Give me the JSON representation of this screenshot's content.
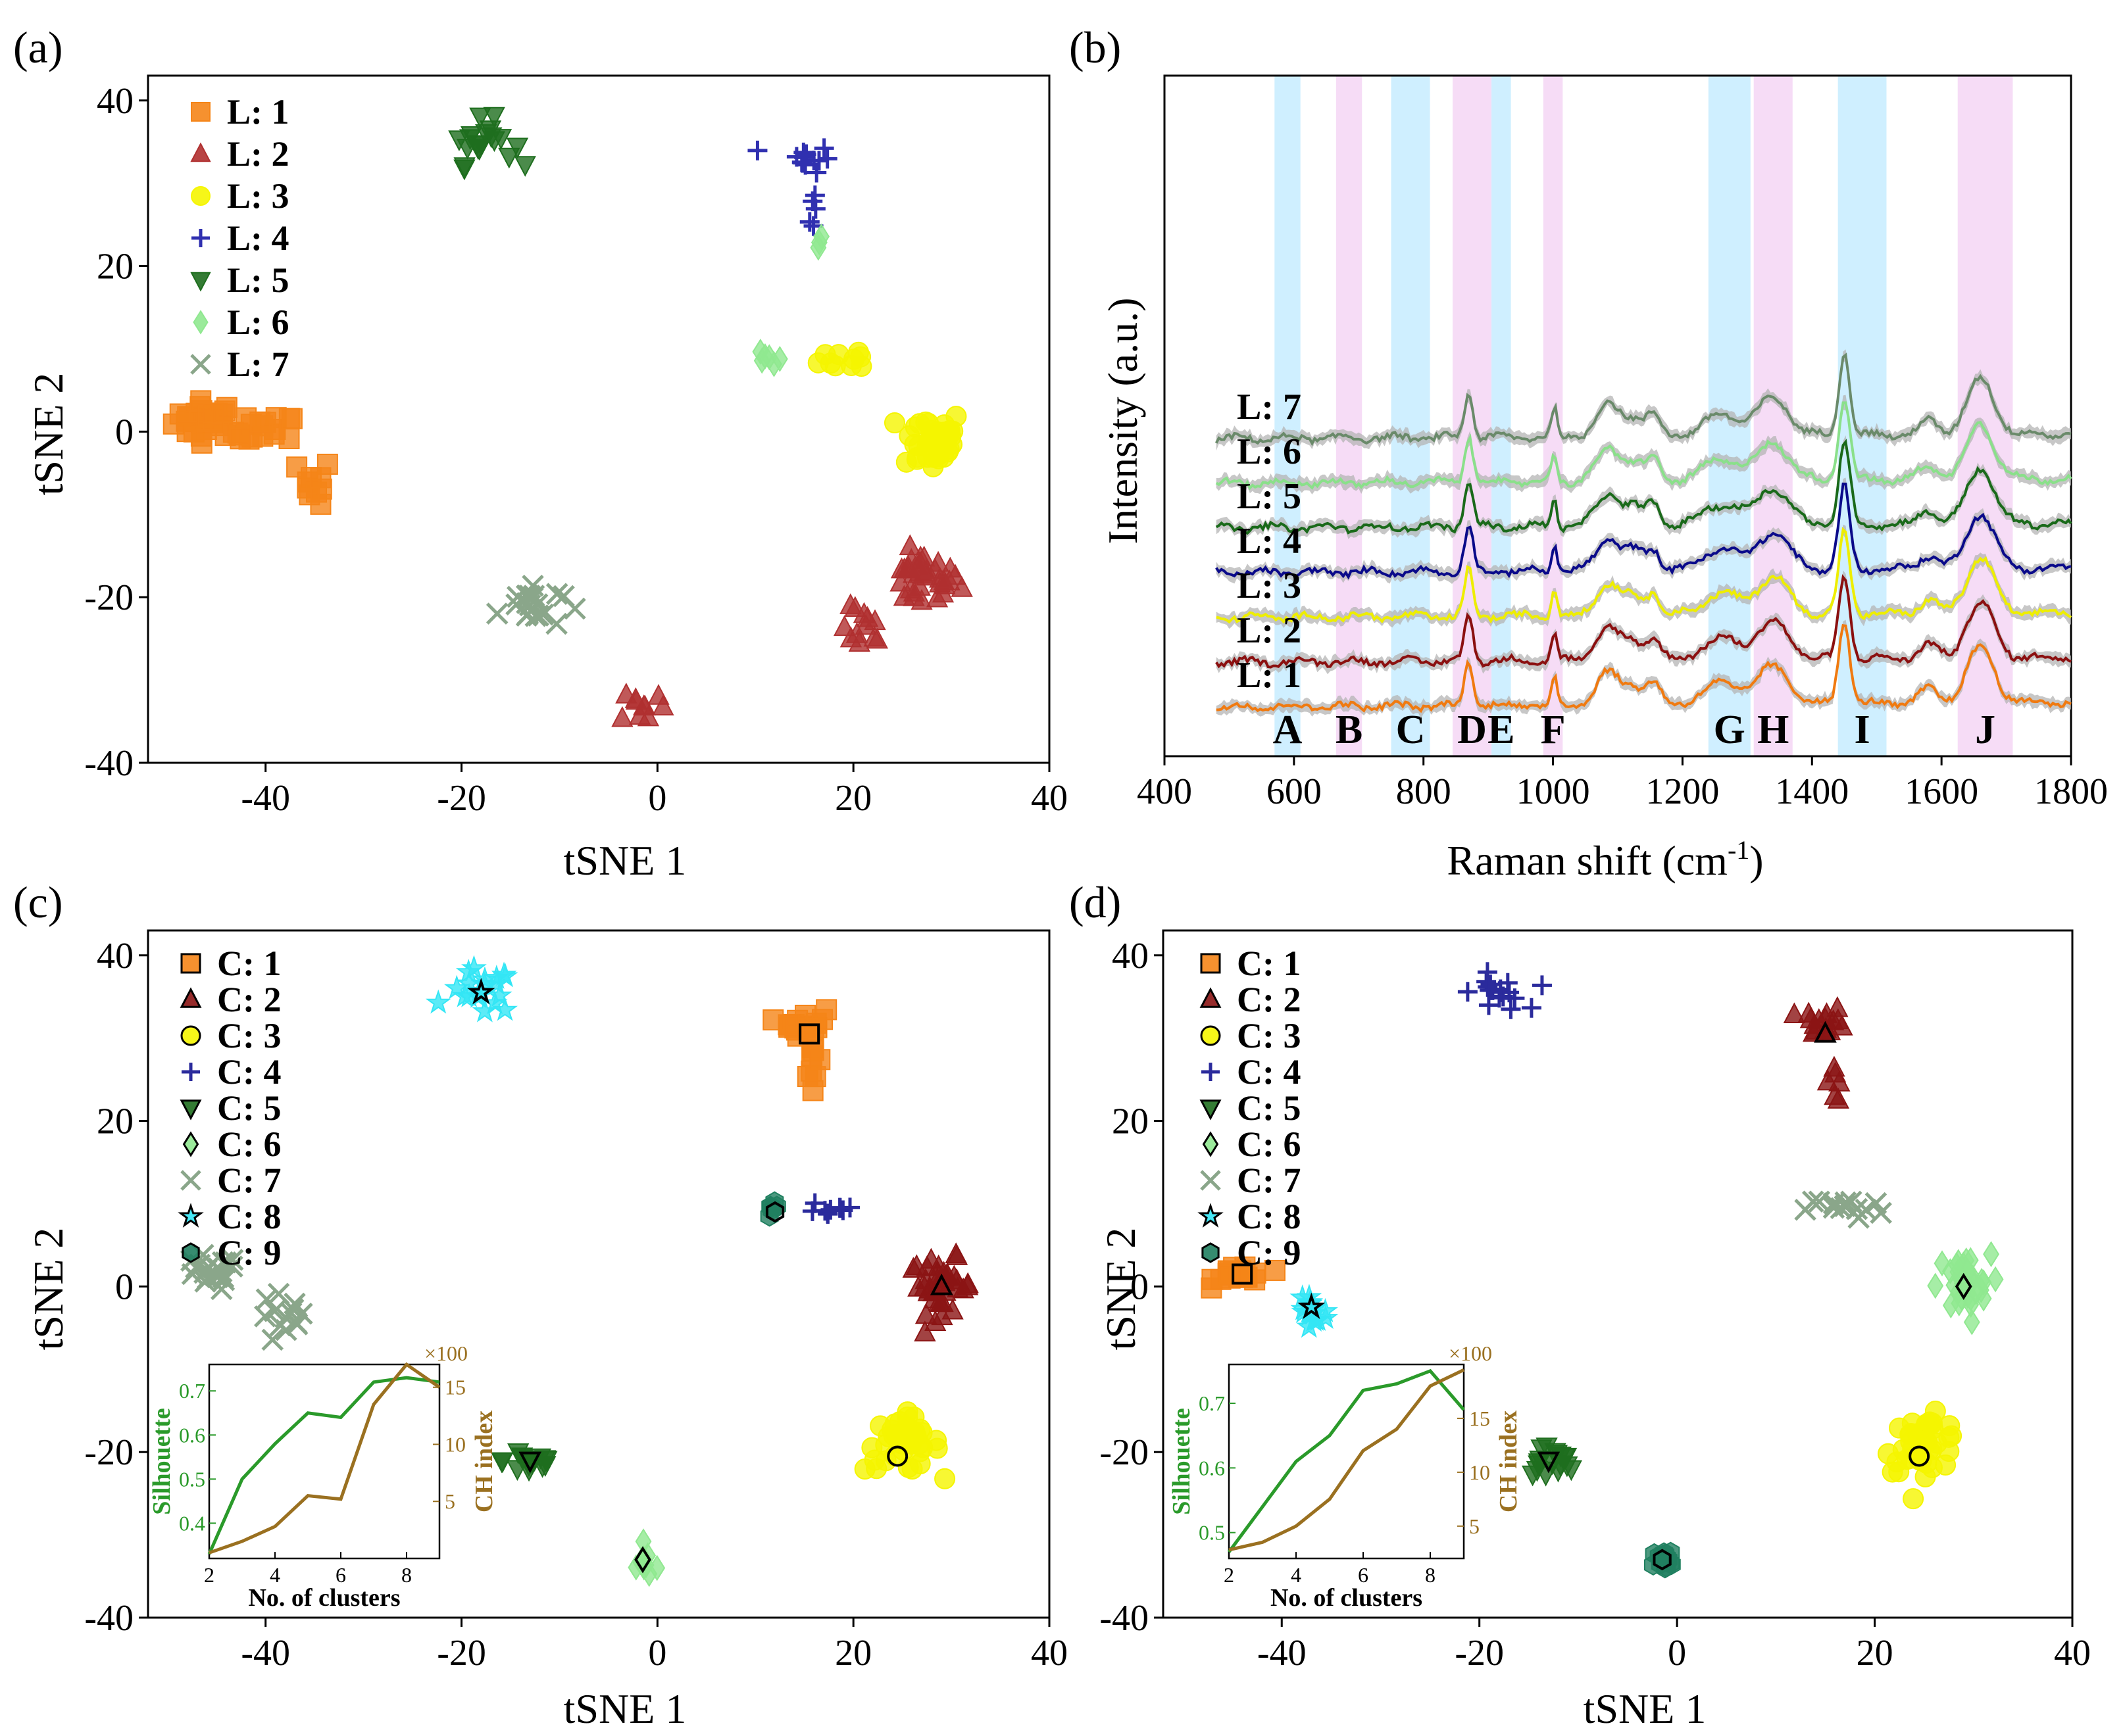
{
  "panels": {
    "a": {
      "label": "(a)",
      "xlabel": "tSNE 1",
      "ylabel": "tSNE 2"
    },
    "b": {
      "label": "(b)",
      "xlabel": "Raman shift (cm",
      "xlabel_sup": "-1",
      "xlabel_end": ")",
      "ylabel": "Intensity (a.u.)"
    },
    "c": {
      "label": "(c)",
      "xlabel": "tSNE 1",
      "ylabel": "tSNE 2"
    },
    "d": {
      "label": "(d)",
      "xlabel": "tSNE 1",
      "ylabel": "tSNE 2"
    }
  },
  "colors": {
    "orange": "#f58518",
    "darkred": "#8b1414",
    "yellow": "#f5f500",
    "navy": "#2b2b9c",
    "darkgreen": "#1e6e1e",
    "lightgreen": "#90e890",
    "gray": "#8aa68a",
    "cyan": "#33e6f5",
    "teal": "#208060",
    "sil": "#2a9a2a",
    "ch": "#9a7020",
    "blueband": "#cfefff",
    "pinkband": "#f6dcf6"
  },
  "chart_data": [
    {
      "id": "a",
      "type": "scatter",
      "title": "",
      "xlabel": "tSNE 1",
      "ylabel": "tSNE 2",
      "xlim": [
        -52,
        40
      ],
      "ylim": [
        -40,
        43
      ],
      "xticks": [
        -40,
        -20,
        0,
        20,
        40
      ],
      "yticks": [
        -40,
        -20,
        0,
        20,
        40
      ],
      "xtick_labels": [
        "-40",
        "-20",
        "0",
        "20",
        "40"
      ],
      "ytick_labels": [
        "-40",
        "-20",
        "0",
        "20",
        "40"
      ],
      "legend": [
        "L: 1",
        "L: 2",
        "L: 3",
        "L: 4",
        "L: 5",
        "L: 6",
        "L: 7"
      ],
      "series": [
        {
          "name": "L: 1",
          "marker": "square",
          "color": "#f58518",
          "clusters": [
            [
              -46,
              1.5,
              3,
              2,
              30
            ],
            [
              -40,
              0,
              3,
              2,
              18
            ],
            [
              -35,
              -6,
              1.6,
              2.5,
              10
            ]
          ]
        },
        {
          "name": "L: 2",
          "marker": "triangle",
          "color": "#b03030",
          "clusters": [
            [
              27,
              -18,
              3.5,
              3,
              35
            ],
            [
              21,
              -24,
              2,
              2.5,
              12
            ],
            [
              -1.5,
              -33,
              2,
              2,
              10
            ]
          ]
        },
        {
          "name": "L: 3",
          "marker": "circle",
          "color": "#f5f500",
          "clusters": [
            [
              28,
              -1,
              3,
              3.5,
              40
            ],
            [
              20,
              9,
              3,
              1.5,
              10
            ]
          ]
        },
        {
          "name": "L: 4",
          "marker": "plus",
          "color": "#3030b0",
          "clusters": [
            [
              15,
              33,
              2.5,
              1.5,
              14
            ],
            [
              16,
              27,
              0.6,
              3,
              5
            ]
          ]
        },
        {
          "name": "L: 5",
          "marker": "triangle-down",
          "color": "#1e6e1e",
          "clusters": [
            [
              -18,
              35,
              3,
              2.5,
              20
            ]
          ]
        },
        {
          "name": "L: 6",
          "marker": "diamond",
          "color": "#90e890",
          "clusters": [
            [
              11.5,
              9,
              1,
              1,
              6
            ],
            [
              16.5,
              23,
              0.4,
              1.5,
              3
            ]
          ]
        },
        {
          "name": "L: 7",
          "marker": "x",
          "color": "#8aa68a",
          "clusters": [
            [
              -13,
              -21,
              3,
              2.5,
              22
            ]
          ]
        }
      ]
    },
    {
      "id": "b",
      "type": "line",
      "title": "",
      "xlabel": "Raman shift (cm-1)",
      "ylabel": "Intensity (a.u.)",
      "xlim": [
        400,
        1800
      ],
      "xticks": [
        400,
        600,
        800,
        1000,
        1200,
        1400,
        1600,
        1800
      ],
      "xtick_labels": [
        "400",
        "600",
        "800",
        "1000",
        "1200",
        "1400",
        "1600",
        "1800"
      ],
      "bands": [
        {
          "label": "A",
          "x0": 570,
          "x1": 610,
          "color": "blue"
        },
        {
          "label": "B",
          "x0": 665,
          "x1": 705,
          "color": "pink"
        },
        {
          "label": "C",
          "x0": 750,
          "x1": 810,
          "color": "blue"
        },
        {
          "label": "D",
          "x0": 845,
          "x1": 905,
          "color": "pink"
        },
        {
          "label": "E",
          "x0": 905,
          "x1": 935,
          "color": "blue"
        },
        {
          "label": "F",
          "x0": 985,
          "x1": 1015,
          "color": "pink"
        },
        {
          "label": "G",
          "x0": 1240,
          "x1": 1305,
          "color": "blue"
        },
        {
          "label": "H",
          "x0": 1310,
          "x1": 1370,
          "color": "pink"
        },
        {
          "label": "I",
          "x0": 1440,
          "x1": 1515,
          "color": "blue"
        },
        {
          "label": "J",
          "x0": 1625,
          "x1": 1710,
          "color": "pink"
        }
      ],
      "peaks": [
        [
          870,
          1.0,
          9
        ],
        [
          1002,
          0.6,
          6
        ],
        [
          1085,
          0.7,
          25
        ],
        [
          1125,
          0.4,
          20
        ],
        [
          1155,
          0.45,
          15
        ],
        [
          1260,
          0.45,
          40
        ],
        [
          1340,
          0.8,
          35
        ],
        [
          1450,
          1.8,
          12
        ],
        [
          1580,
          0.3,
          20
        ],
        [
          1660,
          1.2,
          30
        ]
      ],
      "series": [
        {
          "name": "L: 7",
          "color": "#6a8a6a",
          "label": "L: 7"
        },
        {
          "name": "L: 6",
          "color": "#8ae08a",
          "label": "L: 6"
        },
        {
          "name": "L: 5",
          "color": "#1a6a1a",
          "label": "L: 5"
        },
        {
          "name": "L: 4",
          "color": "#0a0a8a",
          "label": "L: 4"
        },
        {
          "name": "L: 3",
          "color": "#eeee00",
          "label": "L: 3"
        },
        {
          "name": "L: 2",
          "color": "#8b1010",
          "label": "L: 2"
        },
        {
          "name": "L: 1",
          "color": "#f07a10",
          "label": "L: 1"
        }
      ]
    },
    {
      "id": "c",
      "type": "scatter",
      "title": "",
      "xlabel": "tSNE 1",
      "ylabel": "tSNE 2",
      "xlim": [
        -52,
        40
      ],
      "ylim": [
        -40,
        43
      ],
      "xticks": [
        -40,
        -20,
        0,
        20,
        40
      ],
      "yticks": [
        -40,
        -20,
        0,
        20,
        40
      ],
      "xtick_labels": [
        "-40",
        "-20",
        "0",
        "20",
        "40"
      ],
      "ytick_labels": [
        "-40",
        "-20",
        "0",
        "20",
        "40"
      ],
      "legend": [
        "C: 1",
        "C: 2",
        "C: 3",
        "C: 4",
        "C: 5",
        "C: 6",
        "C: 7",
        "C: 8",
        "C: 9"
      ],
      "series": [
        {
          "name": "C: 1",
          "marker": "square",
          "color": "#f58518",
          "centroid": [
            15.5,
            30.5
          ],
          "clusters": [
            [
              15,
              32,
              2,
              1.5,
              18
            ],
            [
              16,
              26,
              0.6,
              3,
              8
            ]
          ]
        },
        {
          "name": "C: 2",
          "marker": "triangle",
          "color": "#8b1414",
          "centroid": [
            29,
            0
          ],
          "clusters": [
            [
              29,
              0,
              3,
              3,
              38
            ]
          ]
        },
        {
          "name": "C: 3",
          "marker": "circle",
          "color": "#f5f500",
          "centroid": [
            24.5,
            -20.5
          ],
          "clusters": [
            [
              25,
              -19,
              3.5,
              3,
              40
            ]
          ]
        },
        {
          "name": "C: 4",
          "marker": "plus",
          "color": "#2b2b9c",
          "centroid": [
            18,
            9.5
          ],
          "clusters": [
            [
              18,
              9.5,
              2.5,
              1.2,
              10
            ]
          ]
        },
        {
          "name": "C: 5",
          "marker": "triangle-down",
          "color": "#1e6e1e",
          "centroid": [
            -13,
            -21
          ],
          "clusters": [
            [
              -13,
              -21,
              2.5,
              1.8,
              18
            ]
          ]
        },
        {
          "name": "C: 6",
          "marker": "diamond",
          "color": "#90e890",
          "centroid": [
            -1.5,
            -33
          ],
          "clusters": [
            [
              -1,
              -33.5,
              1.8,
              1.5,
              10
            ]
          ]
        },
        {
          "name": "C: 7",
          "marker": "x",
          "color": "#8aa68a",
          "centroid": [
            -40,
            -1
          ],
          "clusters": [
            [
              -46,
              1.5,
              3,
              2,
              22
            ],
            [
              -38,
              -4,
              2.5,
              3,
              14
            ]
          ]
        },
        {
          "name": "C: 8",
          "marker": "star",
          "color": "#33e6f5",
          "centroid": [
            -18,
            35.5
          ],
          "clusters": [
            [
              -18,
              35.5,
              3,
              2.5,
              20
            ]
          ]
        },
        {
          "name": "C: 9",
          "marker": "hexagon",
          "color": "#208060",
          "centroid": [
            12,
            9
          ],
          "clusters": [
            [
              11.8,
              9,
              0.9,
              0.9,
              6
            ]
          ]
        }
      ],
      "inset": {
        "xlabel": "No. of clusters",
        "ylabel_left": "Silhouette",
        "ylabel_right": "CH index",
        "right_scale": "×100",
        "xticks": [
          2,
          4,
          6,
          8
        ],
        "xlim": [
          2,
          9
        ],
        "left_ylim": [
          0.32,
          0.76
        ],
        "left_yticks": [
          0.4,
          0.5,
          0.6,
          0.7
        ],
        "right_ylim": [
          0,
          17
        ],
        "right_yticks": [
          5,
          10,
          15
        ],
        "x": [
          2,
          3,
          4,
          5,
          6,
          7,
          8,
          9
        ],
        "silhouette": [
          0.33,
          0.5,
          0.58,
          0.65,
          0.64,
          0.72,
          0.73,
          0.72
        ],
        "ch_index": [
          0.5,
          1.5,
          2.8,
          5.5,
          5.2,
          13.5,
          17,
          15
        ]
      }
    },
    {
      "id": "d",
      "type": "scatter",
      "title": "",
      "xlabel": "tSNE 1",
      "ylabel": "tSNE 2",
      "xlim": [
        -52,
        40
      ],
      "ylim": [
        -40,
        43
      ],
      "xticks": [
        -40,
        -20,
        0,
        20,
        40
      ],
      "yticks": [
        -40,
        -20,
        0,
        20,
        40
      ],
      "xtick_labels": [
        "-40",
        "-20",
        "0",
        "20",
        "40"
      ],
      "ytick_labels": [
        "-40",
        "-20",
        "0",
        "20",
        "40"
      ],
      "legend": [
        "C: 1",
        "C: 2",
        "C: 3",
        "C: 4",
        "C: 5",
        "C: 6",
        "C: 7",
        "C: 8",
        "C: 9"
      ],
      "series": [
        {
          "name": "C: 1",
          "marker": "square",
          "color": "#f58518",
          "centroid": [
            -44,
            1.5
          ],
          "clusters": [
            [
              -44,
              1.5,
              2.5,
              1.2,
              22
            ]
          ]
        },
        {
          "name": "C: 2",
          "marker": "triangle",
          "color": "#8b1414",
          "centroid": [
            15,
            30.5
          ],
          "clusters": [
            [
              15,
              32,
              2,
              1.5,
              16
            ],
            [
              16,
              25,
              0.6,
              2.5,
              6
            ]
          ]
        },
        {
          "name": "C: 3",
          "marker": "circle",
          "color": "#f5f500",
          "centroid": [
            24.5,
            -20.5
          ],
          "clusters": [
            [
              25,
              -19,
              3.5,
              3,
              40
            ]
          ]
        },
        {
          "name": "C: 4",
          "marker": "plus",
          "color": "#2b2b9c",
          "centroid": [
            -18,
            35.5
          ],
          "clusters": [
            [
              -18,
              35.5,
              2.5,
              2,
              18
            ]
          ]
        },
        {
          "name": "C: 5",
          "marker": "triangle-down",
          "color": "#1e6e1e",
          "centroid": [
            -13,
            -21
          ],
          "clusters": [
            [
              -13,
              -21,
              2.5,
              1.8,
              18
            ]
          ]
        },
        {
          "name": "C: 6",
          "marker": "diamond",
          "color": "#90e890",
          "centroid": [
            29,
            0
          ],
          "clusters": [
            [
              29,
              0,
              2.5,
              3.5,
              36
            ]
          ]
        },
        {
          "name": "C: 7",
          "marker": "x",
          "color": "#8aa68a",
          "centroid": [
            17,
            9.5
          ],
          "clusters": [
            [
              17,
              9.5,
              3.5,
              1.2,
              14
            ]
          ]
        },
        {
          "name": "C: 8",
          "marker": "star",
          "color": "#33e6f5",
          "centroid": [
            -37,
            -2.5
          ],
          "clusters": [
            [
              -37,
              -3,
              1.5,
              3.5,
              18
            ]
          ]
        },
        {
          "name": "C: 9",
          "marker": "hexagon",
          "color": "#208060",
          "centroid": [
            -1.5,
            -33
          ],
          "clusters": [
            [
              -1,
              -33,
              1.5,
              1.2,
              14
            ]
          ]
        }
      ],
      "inset": {
        "xlabel": "No. of clusters",
        "ylabel_left": "Silhouette",
        "ylabel_right": "CH index",
        "right_scale": "×100",
        "xticks": [
          2,
          4,
          6,
          8
        ],
        "xlim": [
          2,
          9
        ],
        "left_ylim": [
          0.46,
          0.76
        ],
        "left_yticks": [
          0.5,
          0.6,
          0.7
        ],
        "right_ylim": [
          2,
          20
        ],
        "right_yticks": [
          5,
          10,
          15
        ],
        "x": [
          2,
          3,
          4,
          5,
          6,
          7,
          8,
          9
        ],
        "silhouette": [
          0.47,
          0.54,
          0.61,
          0.65,
          0.72,
          0.73,
          0.75,
          0.69
        ],
        "ch_index": [
          2.8,
          3.5,
          5,
          7.5,
          12,
          14,
          18,
          19.5
        ]
      }
    }
  ]
}
